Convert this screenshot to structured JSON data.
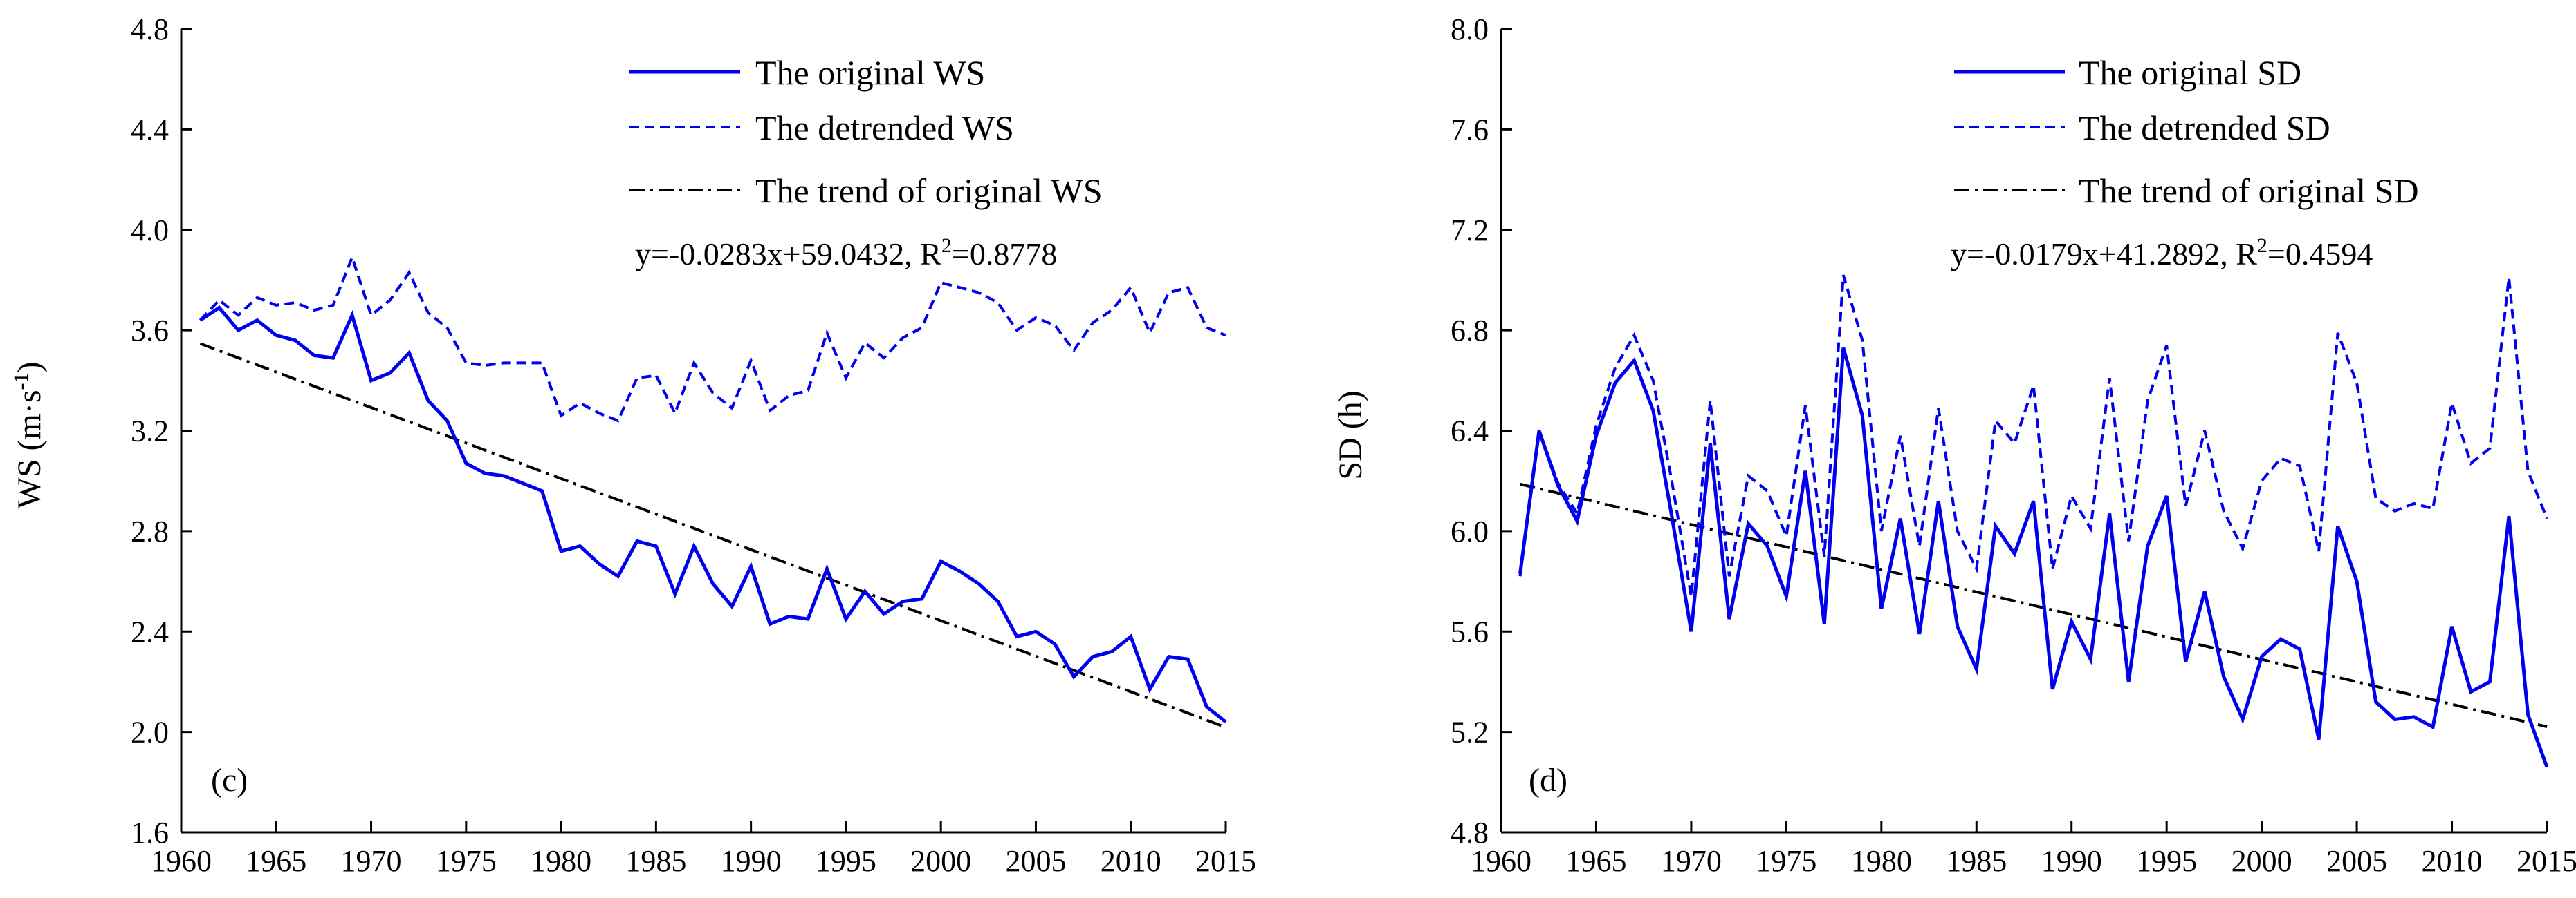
{
  "chart_data": [
    {
      "type": "line",
      "panel_label": "(c)",
      "ylabel": "WS (m·s",
      "ylabel_sup": "-1",
      "ylabel_end": ")",
      "xlim": [
        1960,
        2015
      ],
      "ylim": [
        1.6,
        4.8
      ],
      "x_ticks": [
        "1960",
        "1965",
        "1970",
        "1975",
        "1980",
        "1985",
        "1990",
        "1995",
        "2000",
        "2005",
        "2010",
        "2015"
      ],
      "y_ticks": [
        "1.6",
        "2.0",
        "2.4",
        "2.8",
        "3.2",
        "3.6",
        "4.0",
        "4.4",
        "4.8"
      ],
      "legend_position": "top-right",
      "equation": "y=-0.0283x+59.0432, R",
      "equation_sup": "2",
      "equation_end": "=0.8778",
      "x": [
        1961,
        1962,
        1963,
        1964,
        1965,
        1966,
        1967,
        1968,
        1969,
        1970,
        1971,
        1972,
        1973,
        1974,
        1975,
        1976,
        1977,
        1978,
        1979,
        1980,
        1981,
        1982,
        1983,
        1984,
        1985,
        1986,
        1987,
        1988,
        1989,
        1990,
        1991,
        1992,
        1993,
        1994,
        1995,
        1996,
        1997,
        1998,
        1999,
        2000,
        2001,
        2002,
        2003,
        2004,
        2005,
        2006,
        2007,
        2008,
        2009,
        2010,
        2011,
        2012,
        2013,
        2014,
        2015
      ],
      "series": [
        {
          "name": "The original WS",
          "style": "solid",
          "color": "#0000ee",
          "values": [
            3.64,
            3.69,
            3.6,
            3.64,
            3.58,
            3.56,
            3.5,
            3.49,
            3.66,
            3.4,
            3.43,
            3.51,
            3.32,
            3.24,
            3.07,
            3.03,
            3.02,
            2.99,
            2.96,
            2.72,
            2.74,
            2.67,
            2.62,
            2.76,
            2.74,
            2.55,
            2.74,
            2.59,
            2.5,
            2.66,
            2.43,
            2.46,
            2.45,
            2.65,
            2.45,
            2.56,
            2.47,
            2.52,
            2.53,
            2.68,
            2.64,
            2.59,
            2.52,
            2.38,
            2.4,
            2.35,
            2.22,
            2.3,
            2.32,
            2.38,
            2.17,
            2.3,
            2.29,
            2.1,
            2.04
          ]
        },
        {
          "name": "The detrended WS",
          "style": "dashed",
          "color": "#0000ee",
          "values": [
            3.64,
            3.72,
            3.66,
            3.73,
            3.7,
            3.71,
            3.68,
            3.7,
            3.89,
            3.66,
            3.72,
            3.83,
            3.67,
            3.61,
            3.47,
            3.46,
            3.47,
            3.47,
            3.47,
            3.26,
            3.31,
            3.27,
            3.24,
            3.41,
            3.42,
            3.27,
            3.47,
            3.35,
            3.29,
            3.48,
            3.28,
            3.34,
            3.36,
            3.59,
            3.41,
            3.55,
            3.49,
            3.57,
            3.61,
            3.79,
            3.77,
            3.75,
            3.71,
            3.6,
            3.65,
            3.62,
            3.52,
            3.63,
            3.68,
            3.77,
            3.59,
            3.75,
            3.77,
            3.61,
            3.58
          ]
        }
      ],
      "trend": {
        "name": "The trend of original WS",
        "style": "dashdot",
        "color": "#000000",
        "slope": -0.0283,
        "intercept": 59.0432
      }
    },
    {
      "type": "line",
      "panel_label": "(d)",
      "ylabel": "SD (h)",
      "xlim": [
        1960,
        2015
      ],
      "ylim": [
        4.8,
        8.0
      ],
      "x_ticks": [
        "1960",
        "1965",
        "1970",
        "1975",
        "1980",
        "1985",
        "1990",
        "1995",
        "2000",
        "2005",
        "2010",
        "2015"
      ],
      "y_ticks": [
        "4.8",
        "5.2",
        "5.6",
        "6.0",
        "6.4",
        "6.8",
        "7.2",
        "7.6",
        "8.0"
      ],
      "legend_position": "top-right",
      "equation": "y=-0.0179x+41.2892, R",
      "equation_sup": "2",
      "equation_end": "=0.4594",
      "x": [
        1961,
        1962,
        1963,
        1964,
        1965,
        1966,
        1967,
        1968,
        1969,
        1970,
        1971,
        1972,
        1973,
        1974,
        1975,
        1976,
        1977,
        1978,
        1979,
        1980,
        1981,
        1982,
        1983,
        1984,
        1985,
        1986,
        1987,
        1988,
        1989,
        1990,
        1991,
        1992,
        1993,
        1994,
        1995,
        1996,
        1997,
        1998,
        1999,
        2000,
        2001,
        2002,
        2003,
        2004,
        2005,
        2006,
        2007,
        2008,
        2009,
        2010,
        2011,
        2012,
        2013,
        2014,
        2015
      ],
      "series": [
        {
          "name": "The original SD",
          "style": "solid",
          "color": "#0000ee",
          "values": [
            5.83,
            6.4,
            6.18,
            6.04,
            6.38,
            6.59,
            6.68,
            6.48,
            6.05,
            5.6,
            6.35,
            5.65,
            6.03,
            5.94,
            5.74,
            6.24,
            5.63,
            6.73,
            6.46,
            5.69,
            6.05,
            5.59,
            6.12,
            5.62,
            5.45,
            6.02,
            5.91,
            6.12,
            5.37,
            5.64,
            5.49,
            6.07,
            5.4,
            5.94,
            6.14,
            5.48,
            5.76,
            5.42,
            5.25,
            5.5,
            5.57,
            5.53,
            5.17,
            6.02,
            5.8,
            5.32,
            5.25,
            5.26,
            5.22,
            5.62,
            5.36,
            5.4,
            6.06,
            5.27,
            5.06
          ]
        },
        {
          "name": "The detrended SD",
          "style": "dashed",
          "color": "#0000ee",
          "values": [
            5.82,
            6.4,
            6.19,
            6.07,
            6.42,
            6.65,
            6.78,
            6.6,
            6.19,
            5.74,
            6.52,
            5.82,
            6.22,
            6.16,
            5.98,
            6.5,
            5.9,
            7.02,
            6.76,
            6.0,
            6.38,
            5.94,
            6.49,
            6.0,
            5.85,
            6.44,
            6.35,
            6.58,
            5.85,
            6.14,
            6.01,
            6.61,
            5.96,
            6.52,
            6.74,
            6.1,
            6.4,
            6.08,
            5.93,
            6.2,
            6.29,
            6.26,
            5.92,
            6.79,
            6.59,
            6.13,
            6.08,
            6.11,
            6.09,
            6.51,
            6.27,
            6.33,
            7.01,
            6.24,
            6.05
          ]
        }
      ],
      "trend": {
        "name": "The trend of original SD",
        "style": "dashdot",
        "color": "#000000",
        "slope": -0.0179,
        "intercept": 41.2892
      }
    }
  ]
}
